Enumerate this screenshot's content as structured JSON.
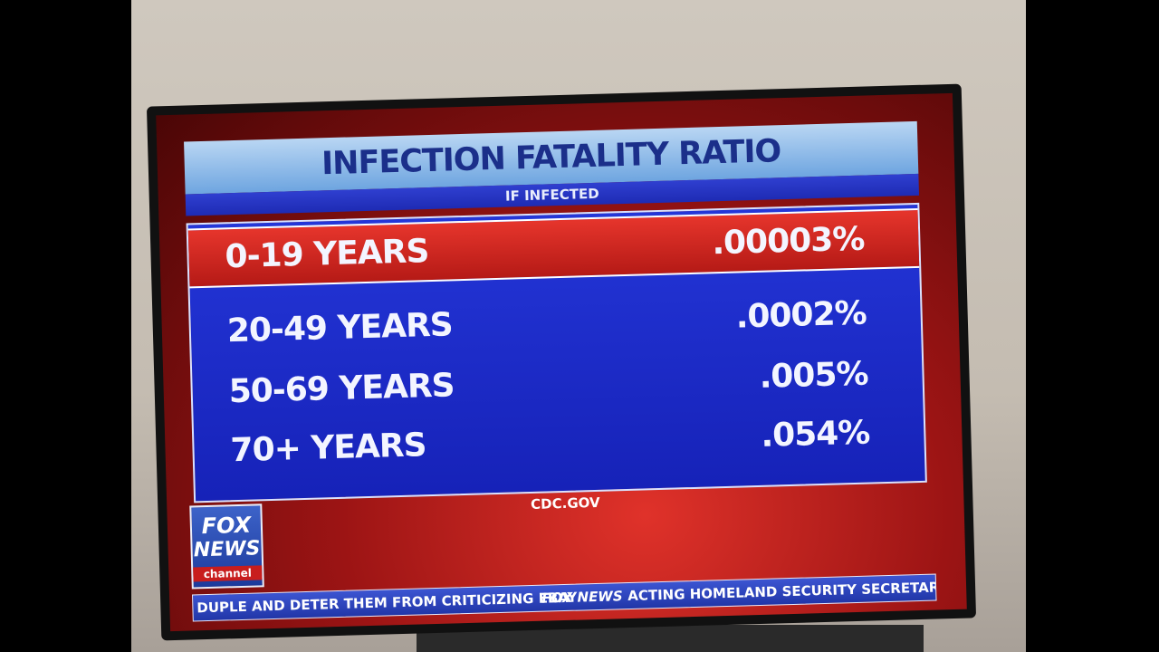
{
  "graphic": {
    "title": "INFECTION FATALITY RATIO",
    "subtitle": "IF INFECTED",
    "table": {
      "rows": [
        [
          "0-19 YEARS",
          ".00003%"
        ],
        [
          "20-49 YEARS",
          ".0002%"
        ],
        [
          "50-69 YEARS",
          ".005%"
        ],
        [
          "70+ YEARS",
          ".054%"
        ]
      ]
    },
    "source": "CDC.GOV"
  },
  "logo": {
    "line1": "FOX",
    "line2": "NEWS",
    "line3": "channel"
  },
  "ticker": {
    "left": "DUPLE AND DETER THEM FROM CRITICIZING EBAY",
    "brand": "FOX NEWS",
    "right": "ACTING HOMELAND SECURITY SECRETARY"
  }
}
